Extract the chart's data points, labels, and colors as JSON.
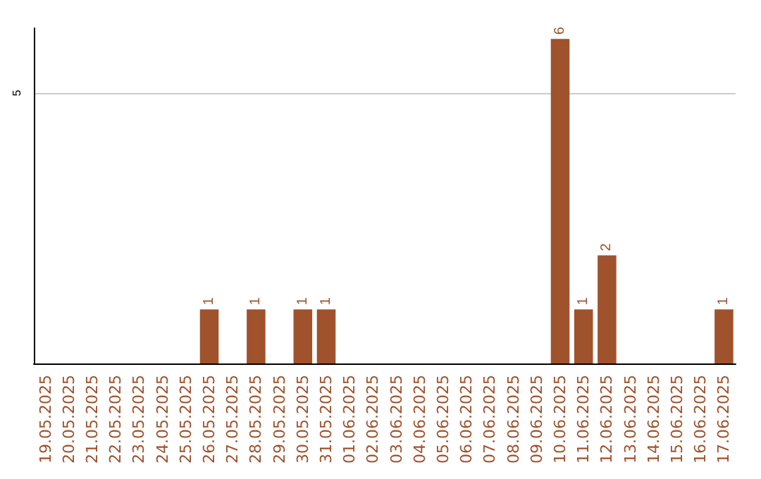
{
  "chart_data": {
    "type": "bar",
    "categories": [
      "19.05.2025",
      "20.05.2025",
      "21.05.2025",
      "22.05.2025",
      "23.05.2025",
      "24.05.2025",
      "25.05.2025",
      "26.05.2025",
      "27.05.2025",
      "28.05.2025",
      "29.05.2025",
      "30.05.2025",
      "31.05.2025",
      "01.06.2025",
      "02.06.2025",
      "03.06.2025",
      "04.06.2025",
      "05.06.2025",
      "06.06.2025",
      "07.06.2025",
      "08.06.2025",
      "09.06.2025",
      "10.06.2025",
      "11.06.2025",
      "12.06.2025",
      "13.06.2025",
      "14.06.2025",
      "15.06.2025",
      "16.06.2025",
      "17.06.2025"
    ],
    "values": [
      0,
      0,
      0,
      0,
      0,
      0,
      0,
      1,
      0,
      1,
      0,
      1,
      1,
      0,
      0,
      0,
      0,
      0,
      0,
      0,
      0,
      0,
      6,
      1,
      2,
      0,
      0,
      0,
      0,
      1
    ],
    "value_labels": [
      null,
      null,
      null,
      null,
      null,
      null,
      null,
      "1",
      null,
      "1",
      null,
      "1",
      "1",
      null,
      null,
      null,
      null,
      null,
      null,
      null,
      null,
      null,
      "6",
      "1",
      "2",
      null,
      null,
      null,
      null,
      "1"
    ],
    "color": "#a0522d",
    "ylim": [
      0,
      6.2
    ],
    "yticks": [
      5
    ],
    "grid": "y"
  }
}
